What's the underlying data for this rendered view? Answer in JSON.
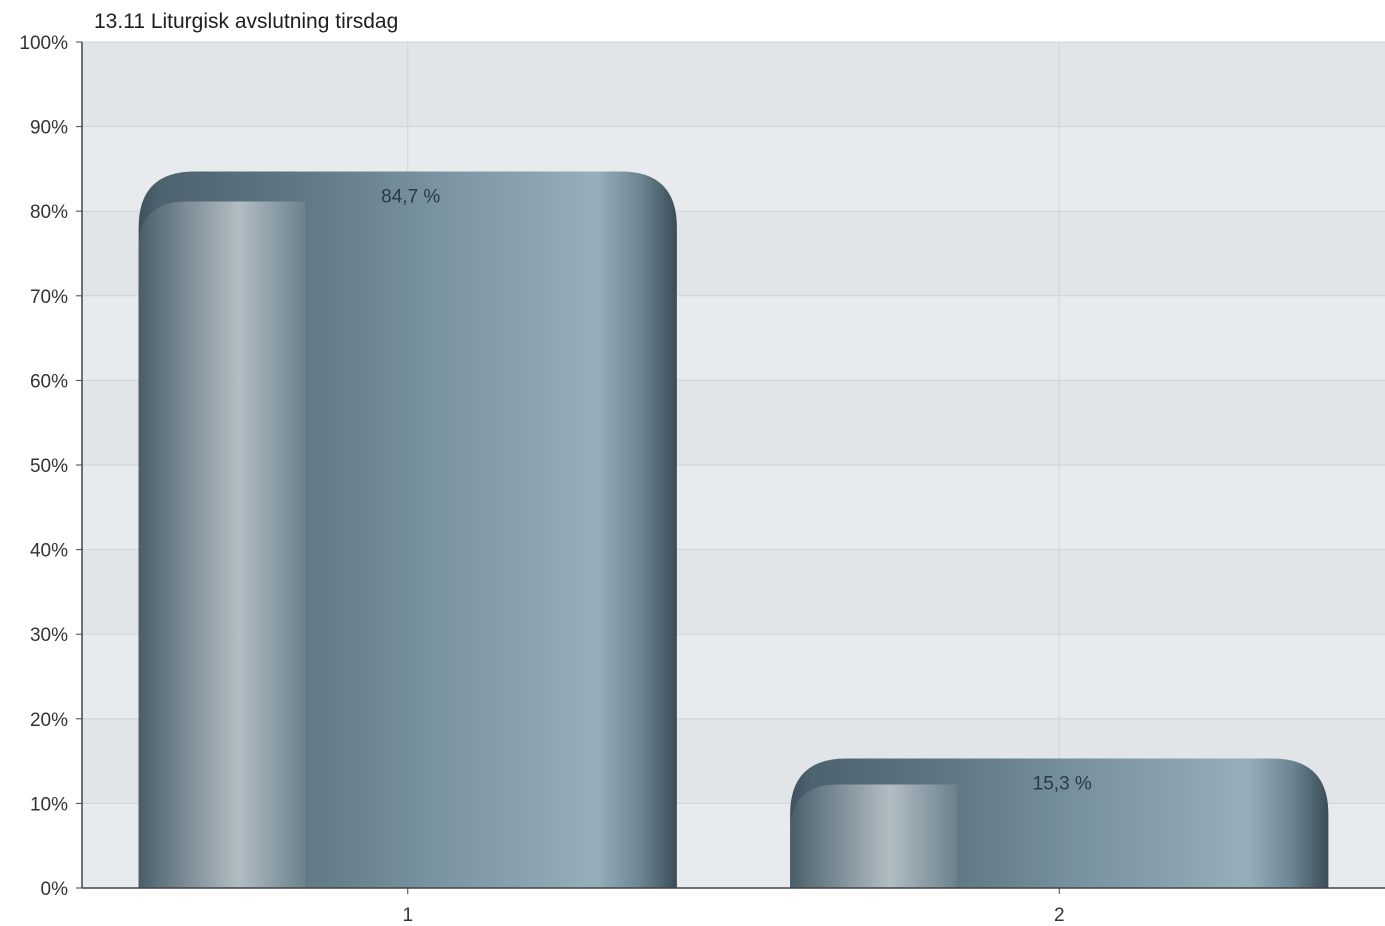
{
  "chart_data": {
    "type": "bar",
    "title": "13.11 Liturgisk avslutning tirsdag",
    "categories": [
      "1",
      "2"
    ],
    "values": [
      84.7,
      15.3
    ],
    "data_labels": [
      "84,7 %",
      "15,3 %"
    ],
    "ylim": [
      0,
      100
    ],
    "y_ticks": [
      0,
      10,
      20,
      30,
      40,
      50,
      60,
      70,
      80,
      90,
      100
    ],
    "y_tick_labels": [
      "0%",
      "10%",
      "20%",
      "30%",
      "40%",
      "50%",
      "60%",
      "70%",
      "80%",
      "90%",
      "100%"
    ],
    "grid": true,
    "xlabel": "",
    "ylabel": "",
    "colors": {
      "plot_band_light": "#e8ebee",
      "plot_band_dark": "#e1e5e8",
      "grid": "#cfd4d8",
      "axis": "#444444",
      "bar_dark": "#3e525e",
      "bar_mid": "#647d89",
      "bar_light": "#97aebb",
      "bar_highlight": "#b9c4ca"
    }
  }
}
